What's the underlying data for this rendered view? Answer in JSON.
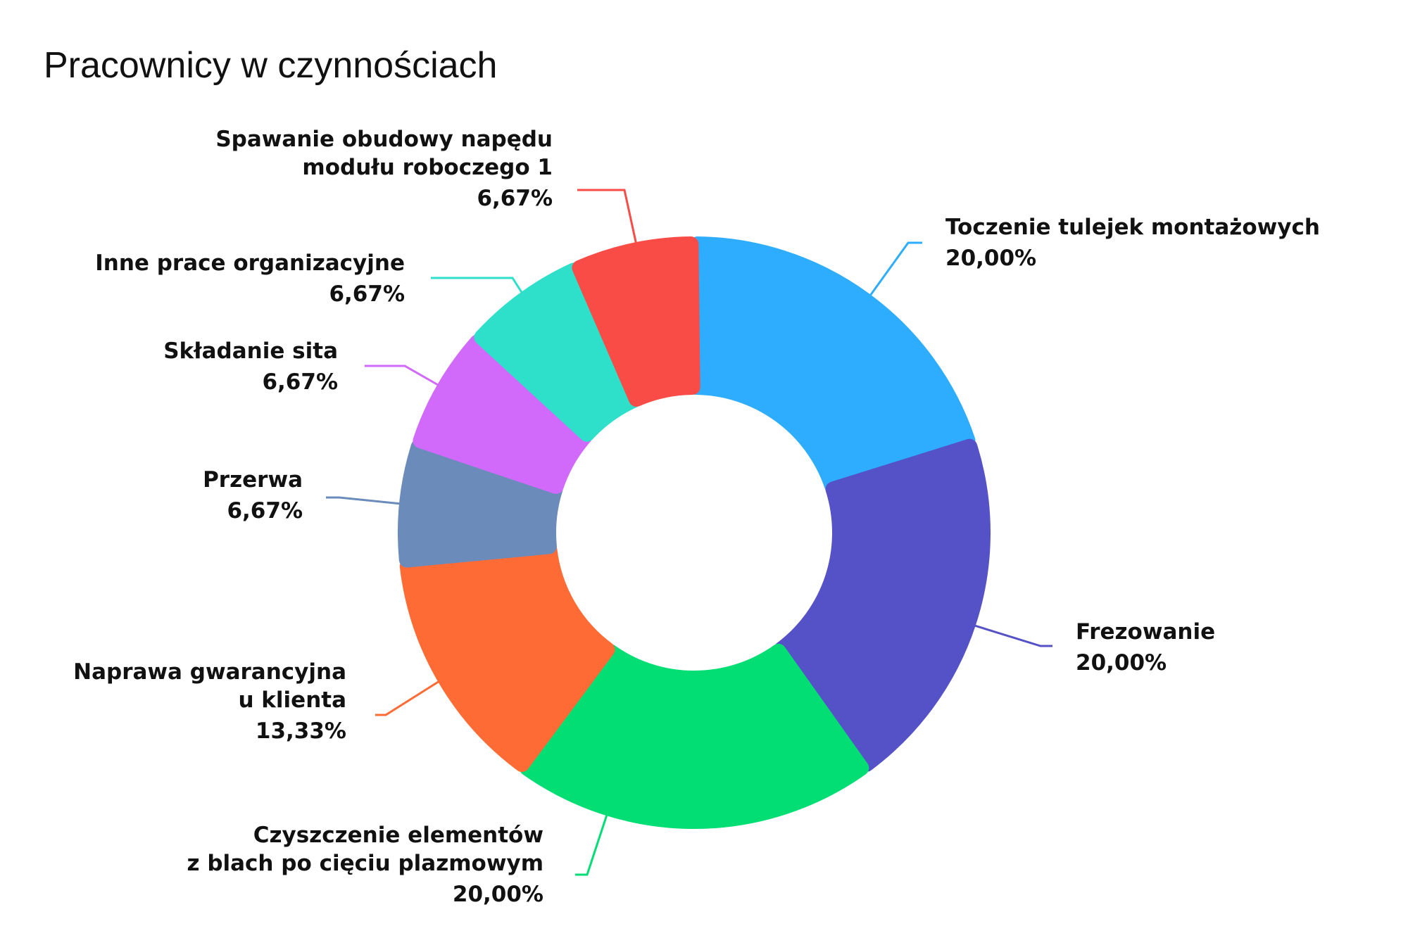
{
  "chart_data": {
    "type": "pie",
    "donut": true,
    "title": "Pracownicy w czynnościach",
    "slices": [
      {
        "label": [
          "Toczenie tulejek montażowych"
        ],
        "value": 20.0,
        "value_label": "20,00%",
        "color": "#2EADFF"
      },
      {
        "label": [
          "Frezowanie"
        ],
        "value": 20.0,
        "value_label": "20,00%",
        "color": "#5551C7"
      },
      {
        "label": [
          "Czyszczenie elementów",
          "z blach po cięciu plazmowym"
        ],
        "value": 20.0,
        "value_label": "20,00%",
        "color": "#03DE74"
      },
      {
        "label": [
          "Naprawa gwarancyjna",
          "u klienta"
        ],
        "value": 13.33,
        "value_label": "13,33%",
        "color": "#FF6B35"
      },
      {
        "label": [
          "Przerwa"
        ],
        "value": 6.67,
        "value_label": "6,67%",
        "color": "#6B8BBB"
      },
      {
        "label": [
          "Składanie sita"
        ],
        "value": 6.67,
        "value_label": "6,67%",
        "color": "#D169FA"
      },
      {
        "label": [
          "Inne prace organizacyjne"
        ],
        "value": 6.67,
        "value_label": "6,67%",
        "color": "#2EE0CA"
      },
      {
        "label": [
          "Spawanie obudowy napędu",
          "modułu roboczego 1"
        ],
        "value": 6.67,
        "value_label": "6,67%",
        "color": "#F94C47"
      }
    ]
  }
}
